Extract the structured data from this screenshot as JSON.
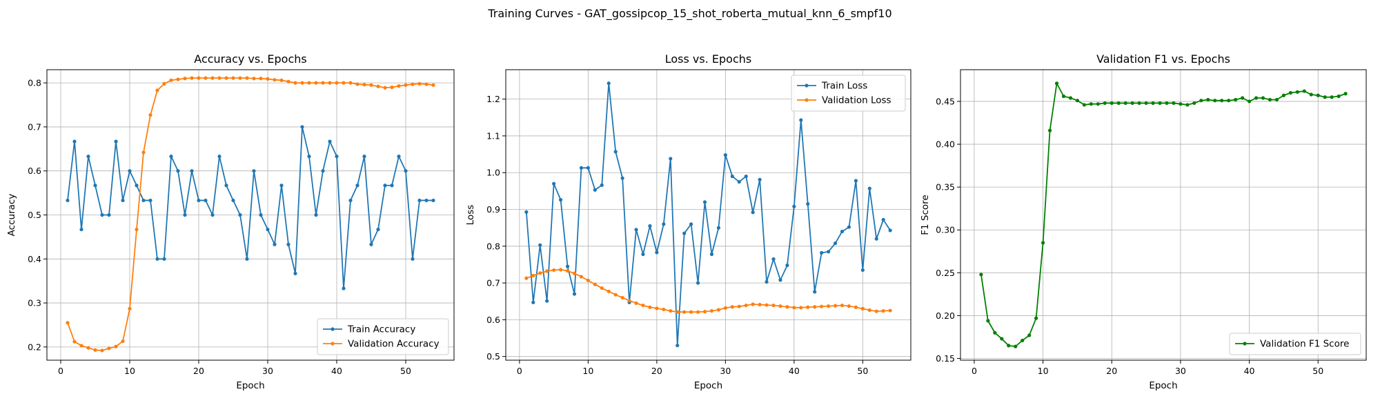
{
  "figure": {
    "suptitle": "Training Curves - GAT_gossipcop_15_shot_roberta_mutual_knn_6_smpf10"
  },
  "chart_data": [
    {
      "type": "line",
      "title": "Accuracy vs. Epochs",
      "xlabel": "Epoch",
      "ylabel": "Accuracy",
      "xlim": [
        -2,
        57
      ],
      "ylim": [
        0.17,
        0.83
      ],
      "xticks": [
        0,
        10,
        20,
        30,
        40,
        50
      ],
      "yticks": [
        0.2,
        0.3,
        0.4,
        0.5,
        0.6,
        0.7,
        0.8
      ],
      "ytick_decimals": 1,
      "grid": true,
      "legend": "bottom-right",
      "x": [
        1,
        2,
        3,
        4,
        5,
        6,
        7,
        8,
        9,
        10,
        11,
        12,
        13,
        14,
        15,
        16,
        17,
        18,
        19,
        20,
        21,
        22,
        23,
        24,
        25,
        26,
        27,
        28,
        29,
        30,
        31,
        32,
        33,
        34,
        35,
        36,
        37,
        38,
        39,
        40,
        41,
        42,
        43,
        44,
        45,
        46,
        47,
        48,
        49,
        50,
        51,
        52,
        53,
        54
      ],
      "series": [
        {
          "name": "Train Accuracy",
          "color": "#1f77b4",
          "values": [
            0.533,
            0.667,
            0.467,
            0.633,
            0.567,
            0.5,
            0.5,
            0.667,
            0.533,
            0.6,
            0.567,
            0.533,
            0.533,
            0.4,
            0.4,
            0.633,
            0.6,
            0.5,
            0.6,
            0.533,
            0.533,
            0.5,
            0.633,
            0.567,
            0.533,
            0.5,
            0.4,
            0.6,
            0.5,
            0.467,
            0.433,
            0.567,
            0.433,
            0.367,
            0.7,
            0.633,
            0.5,
            0.6,
            0.667,
            0.633,
            0.333,
            0.533,
            0.567,
            0.633,
            0.433,
            0.467,
            0.567,
            0.567,
            0.633,
            0.6,
            0.4,
            0.533,
            0.533,
            0.533
          ]
        },
        {
          "name": "Validation Accuracy",
          "color": "#ff7f0e",
          "values": [
            0.255,
            0.212,
            0.203,
            0.198,
            0.193,
            0.192,
            0.197,
            0.201,
            0.213,
            0.287,
            0.467,
            0.642,
            0.727,
            0.783,
            0.798,
            0.806,
            0.808,
            0.81,
            0.811,
            0.811,
            0.811,
            0.811,
            0.811,
            0.811,
            0.811,
            0.811,
            0.811,
            0.81,
            0.81,
            0.809,
            0.807,
            0.806,
            0.803,
            0.8,
            0.8,
            0.8,
            0.8,
            0.8,
            0.8,
            0.8,
            0.8,
            0.8,
            0.797,
            0.796,
            0.795,
            0.792,
            0.789,
            0.79,
            0.793,
            0.795,
            0.797,
            0.798,
            0.797,
            0.795
          ]
        }
      ]
    },
    {
      "type": "line",
      "title": "Loss vs. Epochs",
      "xlabel": "Epoch",
      "ylabel": "Loss",
      "xlim": [
        -2,
        57
      ],
      "ylim": [
        0.49,
        1.28
      ],
      "xticks": [
        0,
        10,
        20,
        30,
        40,
        50
      ],
      "yticks": [
        0.5,
        0.6,
        0.7,
        0.8,
        0.9,
        1.0,
        1.1,
        1.2
      ],
      "ytick_decimals": 1,
      "grid": true,
      "legend": "top-right",
      "x": [
        1,
        2,
        3,
        4,
        5,
        6,
        7,
        8,
        9,
        10,
        11,
        12,
        13,
        14,
        15,
        16,
        17,
        18,
        19,
        20,
        21,
        22,
        23,
        24,
        25,
        26,
        27,
        28,
        29,
        30,
        31,
        32,
        33,
        34,
        35,
        36,
        37,
        38,
        39,
        40,
        41,
        42,
        43,
        44,
        45,
        46,
        47,
        48,
        49,
        50,
        51,
        52,
        53,
        54
      ],
      "series": [
        {
          "name": "Train Loss",
          "color": "#1f77b4",
          "values": [
            0.893,
            0.647,
            0.803,
            0.651,
            0.97,
            0.926,
            0.745,
            0.67,
            1.013,
            1.013,
            0.953,
            0.966,
            1.243,
            1.057,
            0.985,
            0.647,
            0.845,
            0.778,
            0.855,
            0.783,
            0.86,
            1.038,
            0.53,
            0.835,
            0.86,
            0.7,
            0.92,
            0.778,
            0.85,
            1.048,
            0.99,
            0.975,
            0.99,
            0.892,
            0.981,
            0.703,
            0.765,
            0.708,
            0.748,
            0.908,
            1.143,
            0.915,
            0.676,
            0.782,
            0.785,
            0.808,
            0.84,
            0.852,
            0.978,
            0.735,
            0.957,
            0.82,
            0.872,
            0.843
          ]
        },
        {
          "name": "Validation Loss",
          "color": "#ff7f0e",
          "values": [
            0.713,
            0.72,
            0.727,
            0.732,
            0.735,
            0.736,
            0.733,
            0.726,
            0.717,
            0.707,
            0.696,
            0.686,
            0.677,
            0.668,
            0.66,
            0.652,
            0.645,
            0.639,
            0.634,
            0.631,
            0.628,
            0.624,
            0.621,
            0.621,
            0.621,
            0.621,
            0.622,
            0.624,
            0.627,
            0.632,
            0.635,
            0.636,
            0.639,
            0.642,
            0.641,
            0.64,
            0.639,
            0.637,
            0.635,
            0.633,
            0.633,
            0.634,
            0.635,
            0.636,
            0.637,
            0.638,
            0.639,
            0.637,
            0.634,
            0.63,
            0.626,
            0.623,
            0.624,
            0.625
          ]
        }
      ]
    },
    {
      "type": "line",
      "title": "Validation F1 vs. Epochs",
      "xlabel": "Epoch",
      "ylabel": "F1 Score",
      "xlim": [
        -2,
        57
      ],
      "ylim": [
        0.148,
        0.487
      ],
      "xticks": [
        0,
        10,
        20,
        30,
        40,
        50
      ],
      "yticks": [
        0.15,
        0.2,
        0.25,
        0.3,
        0.35,
        0.4,
        0.45
      ],
      "ytick_decimals": 2,
      "grid": true,
      "legend": "bottom-right",
      "x": [
        1,
        2,
        3,
        4,
        5,
        6,
        7,
        8,
        9,
        10,
        11,
        12,
        13,
        14,
        15,
        16,
        17,
        18,
        19,
        20,
        21,
        22,
        23,
        24,
        25,
        26,
        27,
        28,
        29,
        30,
        31,
        32,
        33,
        34,
        35,
        36,
        37,
        38,
        39,
        40,
        41,
        42,
        43,
        44,
        45,
        46,
        47,
        48,
        49,
        50,
        51,
        52,
        53,
        54
      ],
      "series": [
        {
          "name": "Validation F1 Score",
          "color": "#008000",
          "values": [
            0.248,
            0.194,
            0.18,
            0.173,
            0.165,
            0.164,
            0.171,
            0.177,
            0.197,
            0.285,
            0.416,
            0.471,
            0.456,
            0.454,
            0.451,
            0.446,
            0.447,
            0.447,
            0.448,
            0.448,
            0.448,
            0.448,
            0.448,
            0.448,
            0.448,
            0.448,
            0.448,
            0.448,
            0.448,
            0.447,
            0.446,
            0.448,
            0.451,
            0.452,
            0.451,
            0.451,
            0.451,
            0.452,
            0.454,
            0.45,
            0.454,
            0.454,
            0.452,
            0.452,
            0.457,
            0.46,
            0.461,
            0.462,
            0.458,
            0.457,
            0.455,
            0.455,
            0.456,
            0.459
          ]
        }
      ]
    }
  ]
}
